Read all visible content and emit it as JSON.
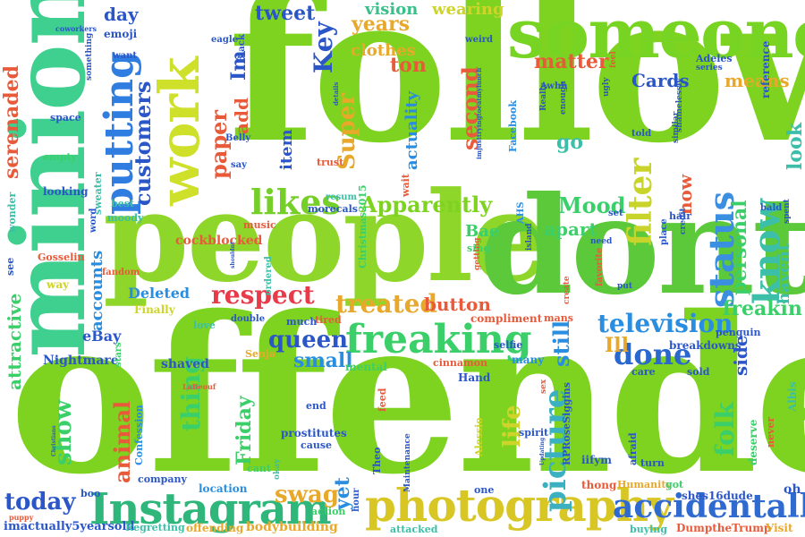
{
  "words": [
    {
      "text": "offended",
      "color": "#7ed321"
    },
    {
      "text": "follow",
      "color": "#7ed321"
    },
    {
      "text": "people",
      "color": "#8fd62a"
    },
    {
      "text": "dont",
      "color": "#5cc93a"
    },
    {
      "text": "minion",
      "color": "#3fcf8e"
    },
    {
      "text": "someone",
      "color": "#78d422"
    },
    {
      "text": "work",
      "color": "#cfe02a"
    },
    {
      "text": "Instagram",
      "color": "#2fb67a"
    },
    {
      "text": "photography",
      "color": "#d8c624"
    },
    {
      "text": "accidentally",
      "color": "#2f6ad0"
    },
    {
      "text": "freaking",
      "color": "#3bcf6a"
    },
    {
      "text": "putting",
      "color": "#2f7de0"
    },
    {
      "text": "likes",
      "color": "#76cf28"
    },
    {
      "text": "know",
      "color": "#3bbfa8"
    },
    {
      "text": "status",
      "color": "#3a8fe0"
    },
    {
      "text": "filter",
      "color": "#c9d42a"
    },
    {
      "text": "respect",
      "color": "#e83a48"
    },
    {
      "text": "treated",
      "color": "#e8a82a"
    },
    {
      "text": "done",
      "color": "#2a68d0"
    },
    {
      "text": "television",
      "color": "#2a8ee0"
    },
    {
      "text": "picture",
      "color": "#3ab0c0"
    },
    {
      "text": "queen",
      "color": "#2a56c8"
    },
    {
      "text": "small",
      "color": "#2a8ee0"
    },
    {
      "text": "Apparently",
      "color": "#7ed321"
    },
    {
      "text": "Mood",
      "color": "#3bcf6a"
    },
    {
      "text": "thing",
      "color": "#3bcf6a"
    },
    {
      "text": "swag",
      "color": "#e8a82a"
    },
    {
      "text": "animal",
      "color": "#e85a3a"
    },
    {
      "text": "show",
      "color": "#3bcf6a"
    },
    {
      "text": "life",
      "color": "#cfd42a"
    },
    {
      "text": "folk",
      "color": "#3bcf6a"
    },
    {
      "text": "today",
      "color": "#2a56c8"
    },
    {
      "text": "Key",
      "color": "#2a56c8"
    },
    {
      "text": "second",
      "color": "#e85a3a"
    },
    {
      "text": "Super",
      "color": "#e8a82a"
    },
    {
      "text": "paper",
      "color": "#e85a3a"
    },
    {
      "text": "customers",
      "color": "#2a56c8"
    },
    {
      "text": "serenaded",
      "color": "#e85a3a"
    },
    {
      "text": "freakin",
      "color": "#3bcf6a"
    },
    {
      "text": "personal",
      "color": "#3bcf6a"
    },
    {
      "text": "look",
      "color": "#3bbfa8"
    },
    {
      "text": "matter",
      "color": "#e85a3a"
    },
    {
      "text": "ton",
      "color": "#e85a3a"
    },
    {
      "text": "years",
      "color": "#e8a82a"
    },
    {
      "text": "wearing",
      "color": "#cfd42a"
    },
    {
      "text": "vision",
      "color": "#3bbf8a"
    },
    {
      "text": "tweet",
      "color": "#2a56c8"
    },
    {
      "text": "day",
      "color": "#2a56c8"
    },
    {
      "text": "Cards",
      "color": "#2a56c8"
    },
    {
      "text": "means",
      "color": "#e8a82a"
    },
    {
      "text": "button",
      "color": "#e85a3a"
    },
    {
      "text": "yet",
      "color": "#2a8ee0"
    },
    {
      "text": "still",
      "color": "#2a8ee0"
    },
    {
      "text": "Ill",
      "color": "#e8a82a"
    },
    {
      "text": "side",
      "color": "#2a56c8"
    },
    {
      "text": "havent",
      "color": "#3bbfa8"
    },
    {
      "text": "Friday",
      "color": "#3bcf6a"
    },
    {
      "text": "attractive",
      "color": "#3bcf6a"
    },
    {
      "text": "accounts",
      "color": "#2a8ee0"
    },
    {
      "text": "go",
      "color": "#3bbfa8"
    },
    {
      "text": "apart",
      "color": "#3bcf6a"
    },
    {
      "text": "now",
      "color": "#e85a3a"
    },
    {
      "text": "add",
      "color": "#e85a3a"
    },
    {
      "text": "item",
      "color": "#2a56c8"
    },
    {
      "text": "Im",
      "color": "#2a56c8"
    },
    {
      "text": "clothes",
      "color": "#e8a82a"
    },
    {
      "text": "actuality",
      "color": "#2a8ee0"
    },
    {
      "text": "Bae",
      "color": "#3bcf6a"
    },
    {
      "text": "Deleted",
      "color": "#2a8ee0"
    },
    {
      "text": "eBay",
      "color": "#2a56c8"
    },
    {
      "text": "Nightmare",
      "color": "#2a56c8"
    },
    {
      "text": "shaved",
      "color": "#2a56c8"
    },
    {
      "text": "Hand",
      "color": "#2a56c8"
    },
    {
      "text": "cockblocked",
      "color": "#e85a3a"
    },
    {
      "text": "Instagram",
      "color": "#3bcf6a"
    },
    {
      "text": "bodybuilding",
      "color": "#e8a82a"
    },
    {
      "text": "imactually5yearsold",
      "color": "#2a56c8"
    },
    {
      "text": "Regretting",
      "color": "#3bbfa8"
    },
    {
      "text": "offending",
      "color": "#e8a82a"
    },
    {
      "text": "DumptheTrump",
      "color": "#e85a3a"
    },
    {
      "text": "Visit",
      "color": "#e8a82a"
    },
    {
      "text": "buying",
      "color": "#3bbfa8"
    },
    {
      "text": "attacked",
      "color": "#3bbfa8"
    },
    {
      "text": "shes16dude",
      "color": "#2a56c8"
    },
    {
      "text": "oh",
      "color": "#2a56c8"
    },
    {
      "text": "thong",
      "color": "#e85a3a"
    },
    {
      "text": "Humanity",
      "color": "#e8a82a"
    },
    {
      "text": "location",
      "color": "#2a8ee0"
    },
    {
      "text": "company",
      "color": "#2a56c8"
    },
    {
      "text": "boo",
      "color": "#2a56c8"
    },
    {
      "text": "action",
      "color": "#3bcf6a"
    },
    {
      "text": "hour",
      "color": "#2a56c8"
    },
    {
      "text": "one",
      "color": "#2a56c8"
    },
    {
      "text": "Theo",
      "color": "#2a56c8"
    },
    {
      "text": "iifym",
      "color": "#2a56c8"
    },
    {
      "text": "deserve",
      "color": "#3bcf6a"
    },
    {
      "text": "never",
      "color": "#e85a3a"
    },
    {
      "text": "Albis",
      "color": "#3bbfa8"
    },
    {
      "text": "sold",
      "color": "#2a56c8"
    },
    {
      "text": "breakdowns",
      "color": "#2a56c8"
    },
    {
      "text": "penguin",
      "color": "#2a56c8"
    },
    {
      "text": "selfie",
      "color": "#2a56c8"
    },
    {
      "text": "compliment",
      "color": "#e85a3a"
    },
    {
      "text": "mans",
      "color": "#e85a3a"
    },
    {
      "text": "many",
      "color": "#2a8ee0"
    },
    {
      "text": "cinnamon",
      "color": "#e85a3a"
    },
    {
      "text": "mental",
      "color": "#3bcf6a"
    },
    {
      "text": "tired",
      "color": "#e85a3a"
    },
    {
      "text": "much",
      "color": "#2a56c8"
    },
    {
      "text": "double",
      "color": "#2a56c8"
    },
    {
      "text": "love",
      "color": "#3bbfa8"
    },
    {
      "text": "Finally",
      "color": "#cfd42a"
    },
    {
      "text": "Senja",
      "color": "#e8a82a"
    },
    {
      "text": "stars",
      "color": "#3bcf6a"
    },
    {
      "text": "feed",
      "color": "#e85a3a"
    },
    {
      "text": "end",
      "color": "#2a56c8"
    },
    {
      "text": "prostitutes",
      "color": "#2a56c8"
    },
    {
      "text": "cause",
      "color": "#2a56c8"
    },
    {
      "text": "Confession",
      "color": "#2a8ee0"
    },
    {
      "text": "cant",
      "color": "#3bcf6a"
    },
    {
      "text": "okay",
      "color": "#3bbfa8"
    },
    {
      "text": "spirit",
      "color": "#2a56c8"
    },
    {
      "text": "Alessio",
      "color": "#cfd42a"
    },
    {
      "text": "RPRoseSiggins",
      "color": "#2a56c8"
    },
    {
      "text": "afraid",
      "color": "#2a56c8"
    },
    {
      "text": "turn",
      "color": "#2a56c8"
    },
    {
      "text": "got",
      "color": "#3bcf6a"
    },
    {
      "text": "care",
      "color": "#2a56c8"
    },
    {
      "text": "sex",
      "color": "#e85a3a"
    },
    {
      "text": "way",
      "color": "#cfd42a"
    },
    {
      "text": "fandom",
      "color": "#e85a3a"
    },
    {
      "text": "see",
      "color": "#2a56c8"
    },
    {
      "text": "Gosselin",
      "color": "#e85a3a"
    },
    {
      "text": "wonder",
      "color": "#3bbfa8"
    },
    {
      "text": "looking",
      "color": "#2a56c8"
    },
    {
      "text": "empty",
      "color": "#3bcf6a"
    },
    {
      "text": "space",
      "color": "#2a56c8"
    },
    {
      "text": "sweater",
      "color": "#3bbfa8"
    },
    {
      "text": "word",
      "color": "#2a56c8"
    },
    {
      "text": "best",
      "color": "#3bbfa8"
    },
    {
      "text": "moody",
      "color": "#3bbfa8"
    },
    {
      "text": "music",
      "color": "#e85a3a"
    },
    {
      "text": "morecals",
      "color": "#2a56c8"
    },
    {
      "text": "resum",
      "color": "#3bbfa8"
    },
    {
      "text": "Christmas2015",
      "color": "#3bcf6a"
    },
    {
      "text": "ordered",
      "color": "#3bbfa8"
    },
    {
      "text": "sing",
      "color": "#3bcf6a"
    },
    {
      "text": "AHS",
      "color": "#2a8ee0"
    },
    {
      "text": "island",
      "color": "#2a56c8"
    },
    {
      "text": "need",
      "color": "#2a56c8"
    },
    {
      "text": "place",
      "color": "#2a56c8"
    },
    {
      "text": "hair",
      "color": "#2a56c8"
    },
    {
      "text": "credit",
      "color": "#2a56c8"
    },
    {
      "text": "bald",
      "color": "#2a56c8"
    },
    {
      "text": "spent",
      "color": "#2a56c8"
    },
    {
      "text": "favorite",
      "color": "#e85a3a"
    },
    {
      "text": "create",
      "color": "#e85a3a"
    },
    {
      "text": "put",
      "color": "#2a56c8"
    },
    {
      "text": "set",
      "color": "#2a56c8"
    },
    {
      "text": "wait",
      "color": "#e85a3a"
    },
    {
      "text": "trust",
      "color": "#e85a3a"
    },
    {
      "text": "say",
      "color": "#2a56c8"
    },
    {
      "text": "Belly",
      "color": "#2a56c8"
    },
    {
      "text": "emoji",
      "color": "#2a56c8"
    },
    {
      "text": "want",
      "color": "#2a56c8"
    },
    {
      "text": "coworkers",
      "color": "#2a56c8"
    },
    {
      "text": "something",
      "color": "#2a56c8"
    },
    {
      "text": "eagle",
      "color": "#2a56c8"
    },
    {
      "text": "Black",
      "color": "#2a56c8"
    },
    {
      "text": "details",
      "color": "#2a56c8"
    },
    {
      "text": "weird",
      "color": "#2a56c8"
    },
    {
      "text": "Really",
      "color": "#2a56c8"
    },
    {
      "text": "enough",
      "color": "#2a56c8"
    },
    {
      "text": "Awhh",
      "color": "#2a56c8"
    },
    {
      "text": "Facebook",
      "color": "#2a8ee0"
    },
    {
      "text": "ugly",
      "color": "#2a56c8"
    },
    {
      "text": "told",
      "color": "#2a56c8"
    },
    {
      "text": "similar",
      "color": "#2a56c8"
    },
    {
      "text": "shamelessly",
      "color": "#2a56c8"
    },
    {
      "text": "reference",
      "color": "#2a56c8"
    },
    {
      "text": "feel",
      "color": "#e85a3a"
    },
    {
      "text": "Adeles",
      "color": "#2a56c8"
    },
    {
      "text": "series",
      "color": "#2a56c8"
    },
    {
      "text": "imjusttryingtoeatmylunch",
      "color": "#2a56c8"
    },
    {
      "text": "much",
      "color": "#2a56c8"
    },
    {
      "text": "LaBeouf",
      "color": "#e85a3a"
    },
    {
      "text": "shouldnt",
      "color": "#2a56c8"
    },
    {
      "text": "getting",
      "color": "#e85a3a"
    },
    {
      "text": "puppy",
      "color": "#e85a3a"
    },
    {
      "text": "Christians",
      "color": "#2a56c8"
    },
    {
      "text": "Updating",
      "color": "#2a56c8"
    },
    {
      "text": "Maintenance",
      "color": "#2a56c8"
    }
  ]
}
